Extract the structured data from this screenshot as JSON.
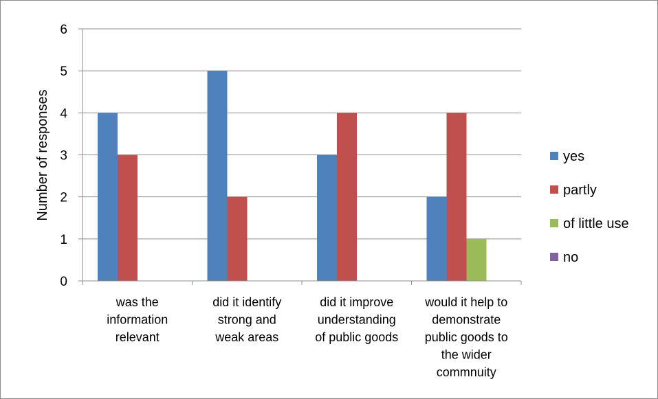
{
  "chart_data": {
    "type": "bar",
    "title": "",
    "xlabel": "",
    "ylabel": "Number of responses",
    "ylim": [
      0,
      6
    ],
    "yticks": [
      0,
      1,
      2,
      3,
      4,
      5,
      6
    ],
    "grid": true,
    "legend_position": "right",
    "categories": [
      [
        "was the",
        "information",
        "relevant"
      ],
      [
        "did it identify",
        "strong and",
        "weak areas"
      ],
      [
        "did it improve",
        "understanding",
        "of public goods"
      ],
      [
        "would it help to",
        "demonstrate",
        "public goods to",
        "the wider",
        "commnuity"
      ]
    ],
    "series": [
      {
        "name": "yes",
        "color": "#4F81BD",
        "values": [
          4,
          5,
          3,
          2
        ]
      },
      {
        "name": "partly",
        "color": "#C0504D",
        "values": [
          3,
          2,
          4,
          4
        ]
      },
      {
        "name": "of little use",
        "color": "#9BBB59",
        "values": [
          0,
          0,
          0,
          1
        ]
      },
      {
        "name": "no",
        "color": "#8064A2",
        "values": [
          0,
          0,
          0,
          0
        ]
      }
    ]
  }
}
